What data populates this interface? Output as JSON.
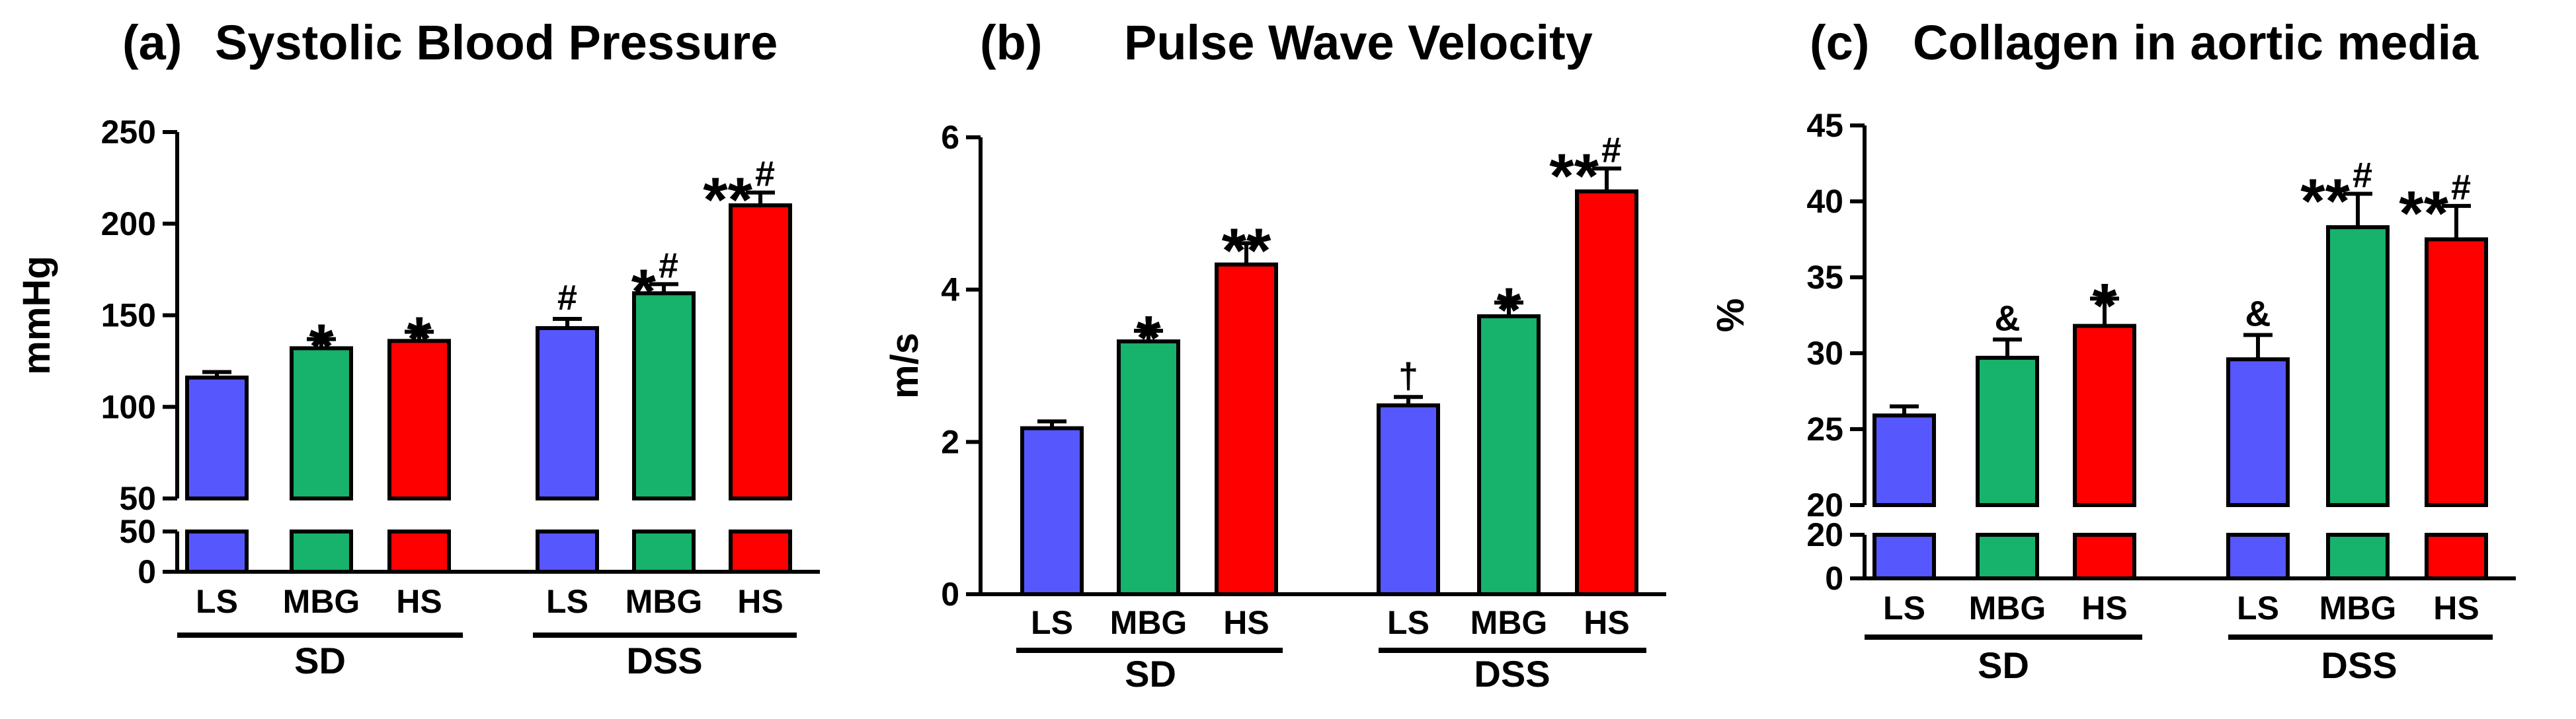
{
  "chart_data": [
    {
      "type": "bar",
      "panel": "(a)",
      "title": "Systolic Blood Pressure",
      "ylabel": "mmHg",
      "ylim": [
        0,
        250
      ],
      "axis_break": [
        50,
        50
      ],
      "yticks_upper": [
        "50",
        "100",
        "150",
        "200",
        "250"
      ],
      "yticks_lower": [
        "0",
        "50"
      ],
      "groups": [
        "SD",
        "DSS"
      ],
      "categories": [
        "LS",
        "MBG",
        "HS"
      ],
      "colors": [
        "#5757fe",
        "#17b26b",
        "#fe0000"
      ],
      "bars": [
        {
          "group": "SD",
          "category": "LS",
          "value": 116,
          "error": 3,
          "star": "",
          "sym": ""
        },
        {
          "group": "SD",
          "category": "MBG",
          "value": 132,
          "error": 5,
          "star": "*",
          "sym": ""
        },
        {
          "group": "SD",
          "category": "HS",
          "value": 136,
          "error": 5,
          "star": "*",
          "sym": ""
        },
        {
          "group": "DSS",
          "category": "LS",
          "value": 143,
          "error": 5,
          "star": "",
          "sym": "#"
        },
        {
          "group": "DSS",
          "category": "MBG",
          "value": 162,
          "error": 5,
          "star": "*",
          "sym": "#"
        },
        {
          "group": "DSS",
          "category": "HS",
          "value": 210,
          "error": 7,
          "star": "**",
          "sym": "#"
        }
      ]
    },
    {
      "type": "bar",
      "panel": "(b)",
      "title": "Pulse Wave Velocity",
      "ylabel": "m/s",
      "ylim": [
        0,
        6
      ],
      "yticks": [
        "0",
        "2",
        "4",
        "6"
      ],
      "groups": [
        "SD",
        "DSS"
      ],
      "categories": [
        "LS",
        "MBG",
        "HS"
      ],
      "colors": [
        "#5757fe",
        "#17b26b",
        "#fe0000"
      ],
      "bars": [
        {
          "group": "SD",
          "category": "LS",
          "value": 2.18,
          "error": 0.09,
          "star": "",
          "sym": ""
        },
        {
          "group": "SD",
          "category": "MBG",
          "value": 3.32,
          "error": 0.14,
          "star": "*",
          "sym": ""
        },
        {
          "group": "SD",
          "category": "HS",
          "value": 4.33,
          "error": 0.28,
          "star": "**",
          "sym": ""
        },
        {
          "group": "DSS",
          "category": "LS",
          "value": 2.48,
          "error": 0.11,
          "star": "",
          "sym": "†"
        },
        {
          "group": "DSS",
          "category": "MBG",
          "value": 3.65,
          "error": 0.18,
          "star": "*",
          "sym": ""
        },
        {
          "group": "DSS",
          "category": "HS",
          "value": 5.29,
          "error": 0.3,
          "star": "**",
          "sym": "#"
        }
      ]
    },
    {
      "type": "bar",
      "panel": "(c)",
      "title": "Collagen in aortic media",
      "ylabel": "%",
      "ylim": [
        0,
        45
      ],
      "axis_break": [
        20,
        20
      ],
      "yticks_upper": [
        "20",
        "25",
        "30",
        "35",
        "40",
        "45"
      ],
      "yticks_lower": [
        "0",
        "20"
      ],
      "groups": [
        "SD",
        "DSS"
      ],
      "categories": [
        "LS",
        "MBG",
        "HS"
      ],
      "colors": [
        "#5757fe",
        "#17b26b",
        "#fe0000"
      ],
      "bars": [
        {
          "group": "SD",
          "category": "LS",
          "value": 25.9,
          "error": 0.6,
          "star": "",
          "sym": ""
        },
        {
          "group": "SD",
          "category": "MBG",
          "value": 29.7,
          "error": 1.2,
          "star": "",
          "sym": "&"
        },
        {
          "group": "SD",
          "category": "HS",
          "value": 31.8,
          "error": 1.8,
          "star": "*",
          "sym": ""
        },
        {
          "group": "DSS",
          "category": "LS",
          "value": 29.6,
          "error": 1.6,
          "star": "",
          "sym": "&"
        },
        {
          "group": "DSS",
          "category": "MBG",
          "value": 38.3,
          "error": 2.2,
          "star": "**",
          "sym": "#"
        },
        {
          "group": "DSS",
          "category": "HS",
          "value": 37.5,
          "error": 2.2,
          "star": "**",
          "sym": "#"
        }
      ]
    }
  ]
}
